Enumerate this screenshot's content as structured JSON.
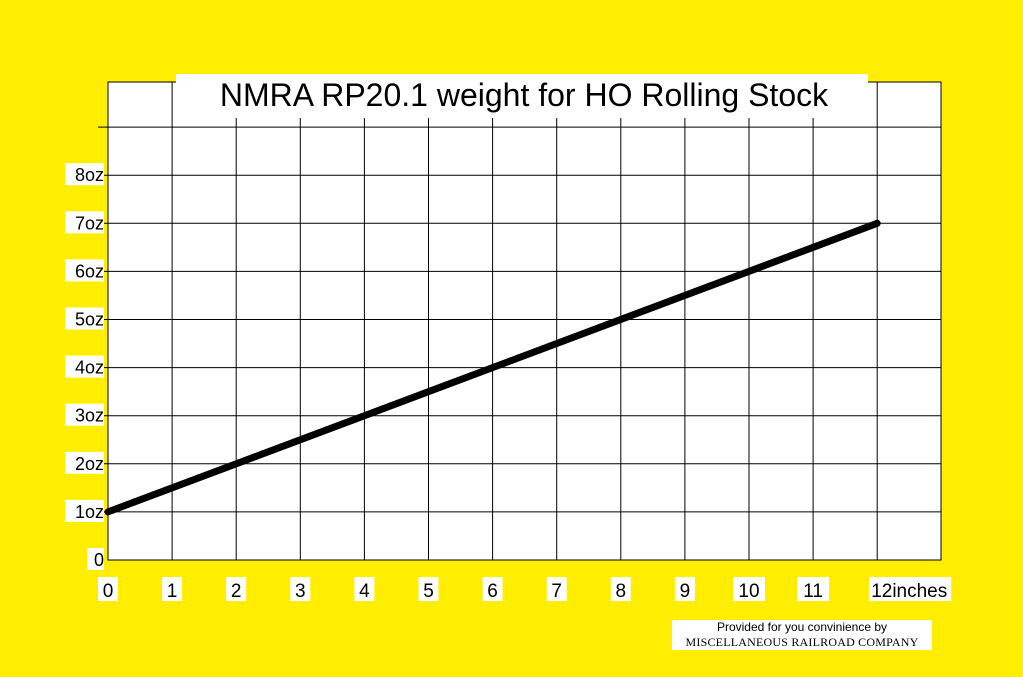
{
  "colors": {
    "background": "#FFEE00",
    "plot_bg": "#FFFFFF",
    "grid": "#000000",
    "line": "#000000",
    "label_bg": "#FFFFFF"
  },
  "chart_data": {
    "type": "line",
    "title": "NMRA RP20.1 weight for HO Rolling Stock",
    "xlabel": "",
    "ylabel": "",
    "x_ticks": [
      {
        "value": 0,
        "label": "0"
      },
      {
        "value": 1,
        "label": "1"
      },
      {
        "value": 2,
        "label": "2"
      },
      {
        "value": 3,
        "label": "3"
      },
      {
        "value": 4,
        "label": "4"
      },
      {
        "value": 5,
        "label": "5"
      },
      {
        "value": 6,
        "label": "6"
      },
      {
        "value": 7,
        "label": "7"
      },
      {
        "value": 8,
        "label": "8"
      },
      {
        "value": 9,
        "label": "9"
      },
      {
        "value": 10,
        "label": "10"
      },
      {
        "value": 11,
        "label": "11"
      },
      {
        "value": 12,
        "label": "12inches"
      }
    ],
    "y_ticks": [
      {
        "value": 0,
        "label": "0"
      },
      {
        "value": 1,
        "label": "1oz"
      },
      {
        "value": 2,
        "label": "2oz"
      },
      {
        "value": 3,
        "label": "3oz"
      },
      {
        "value": 4,
        "label": "4oz"
      },
      {
        "value": 5,
        "label": "5oz"
      },
      {
        "value": 6,
        "label": "6oz"
      },
      {
        "value": 7,
        "label": "7oz"
      },
      {
        "value": 8,
        "label": "8oz"
      }
    ],
    "xlim": [
      0,
      13
    ],
    "ylim": [
      0,
      9
    ],
    "grid": true,
    "series": [
      {
        "x": [
          0,
          12
        ],
        "y": [
          1,
          7
        ]
      }
    ]
  },
  "credit": {
    "line1": "Provided for you convinience by",
    "line2": "MISCELLANEOUS RAILROAD COMPANY"
  }
}
